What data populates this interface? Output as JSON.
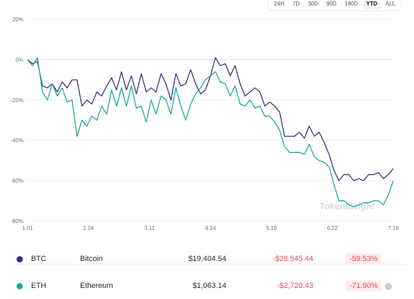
{
  "range_tabs": [
    {
      "label": "24H",
      "active": false
    },
    {
      "label": "7D",
      "active": false
    },
    {
      "label": "30D",
      "active": false
    },
    {
      "label": "90D",
      "active": false
    },
    {
      "label": "180D",
      "active": false
    },
    {
      "label": "YTD",
      "active": true
    },
    {
      "label": "ALL",
      "active": false
    }
  ],
  "watermark": "TokenInsight",
  "chart_data": {
    "type": "line",
    "x_ticks": [
      "1.01",
      "2.04",
      "3.11",
      "4.14",
      "5.19",
      "6.22",
      "7.19"
    ],
    "y_ticks": [
      "20%",
      "0%",
      "-20%",
      "-40%",
      "-60%",
      "-80%"
    ],
    "ylim": [
      -80,
      20
    ],
    "grid": true,
    "series": [
      {
        "name": "BTC",
        "color": "#3b2a85",
        "values": [
          0,
          -2,
          -1,
          -13,
          -14,
          -12,
          -16,
          -11,
          -14,
          -10,
          -10,
          -23,
          -20,
          -22,
          -16,
          -18,
          -13,
          -9,
          -15,
          -6,
          -15,
          -8,
          -17,
          -7,
          -16,
          -14,
          -16,
          -7,
          -12,
          -20,
          -7,
          -13,
          -12,
          -5,
          -12,
          -17,
          -15,
          -8,
          1,
          -3,
          -2,
          -8,
          -3,
          -12,
          -18,
          -16,
          -14,
          -16,
          -23,
          -21,
          -23,
          -26,
          -38,
          -38,
          -38,
          -36,
          -39,
          -33,
          -38,
          -36,
          -41,
          -47,
          -55,
          -60,
          -57,
          -57,
          -60,
          -59,
          -60,
          -57,
          -57,
          -56,
          -59,
          -57,
          -54
        ]
      },
      {
        "name": "ETH",
        "color": "#14a89a",
        "values": [
          0,
          -3,
          1,
          -16,
          -20,
          -12,
          -18,
          -14,
          -21,
          -20,
          -38,
          -30,
          -33,
          -28,
          -30,
          -23,
          -27,
          -15,
          -23,
          -14,
          -23,
          -13,
          -24,
          -23,
          -31,
          -20,
          -27,
          -18,
          -20,
          -27,
          -14,
          -23,
          -30,
          -22,
          -17,
          -14,
          -10,
          -8,
          -6,
          -11,
          -12,
          -18,
          -13,
          -22,
          -23,
          -20,
          -24,
          -23,
          -28,
          -28,
          -31,
          -35,
          -43,
          -46,
          -46,
          -46,
          -47,
          -42,
          -48,
          -50,
          -51,
          -53,
          -62,
          -70,
          -70,
          -72,
          -73,
          -72,
          -71,
          -71,
          -70,
          -70,
          -72,
          -67,
          -60
        ]
      }
    ]
  },
  "rows": [
    {
      "symbol": "BTC",
      "name": "Bitcoin",
      "price": "$19,404.54",
      "change": "-$28,545.44",
      "pct": "-59.53%",
      "color": "#3b2a85"
    },
    {
      "symbol": "ETH",
      "name": "Ethereum",
      "price": "$1,063.14",
      "change": "-$2,720.43",
      "pct": "-71.90%",
      "color": "#14a89a"
    }
  ]
}
